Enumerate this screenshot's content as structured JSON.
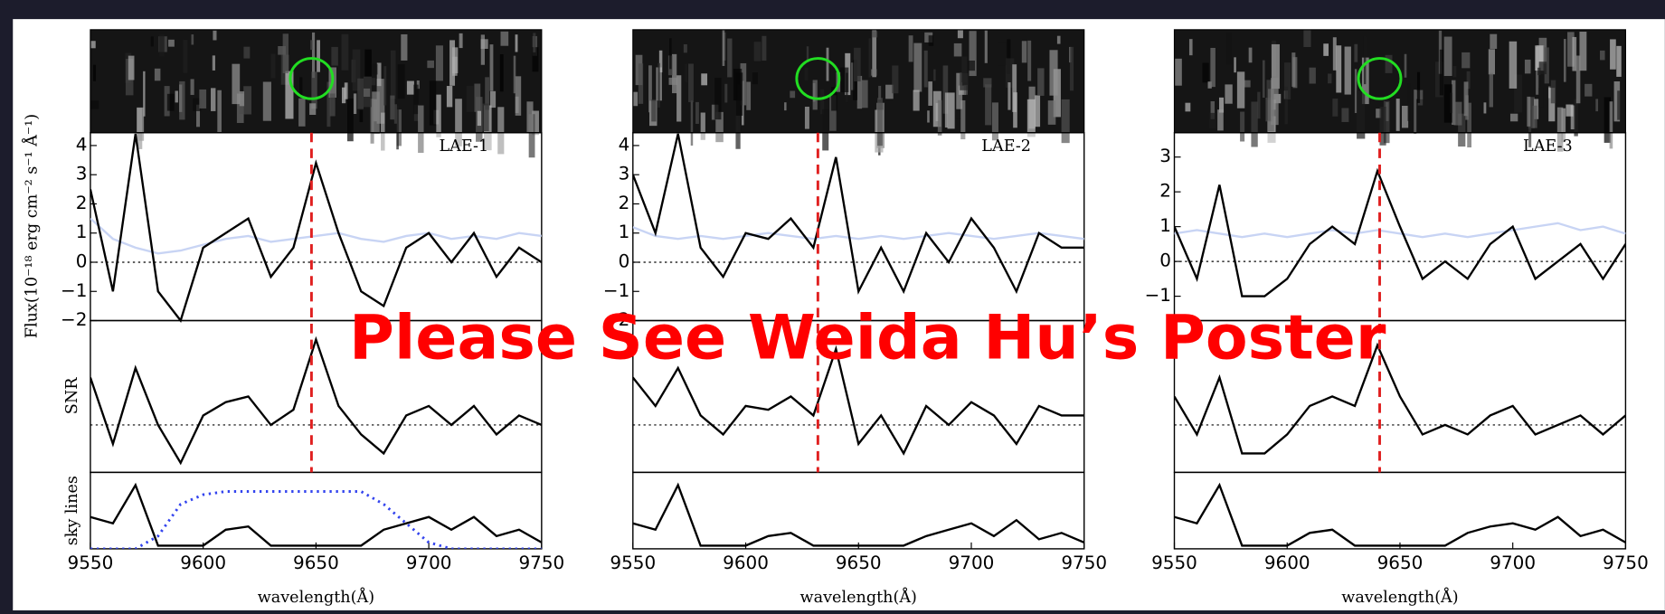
{
  "slide": {
    "overlay_text": "Please See Weida Hu’s Poster",
    "y_label": "Flux(10⁻¹⁸ erg cm⁻² s⁻¹ Å⁻¹)",
    "snr_label": "SNR",
    "sky_label": "sky lines"
  },
  "chart_data": [
    {
      "type": "line",
      "title": "LAE-1",
      "x_label": "wavelength(Å)",
      "line_wavelength": 9648,
      "x": [
        9550,
        9560,
        9570,
        9580,
        9590,
        9600,
        9610,
        9620,
        9630,
        9640,
        9650,
        9660,
        9670,
        9680,
        9690,
        9700,
        9710,
        9720,
        9730,
        9740,
        9750
      ],
      "xlim": [
        9550,
        9750
      ],
      "xticks": [
        9550,
        9600,
        9650,
        9700,
        9750
      ],
      "ylim": [
        -2,
        4.44
      ],
      "yticks": [
        {
          "value": -2,
          "label": "−2"
        },
        {
          "value": -1,
          "label": "−1"
        },
        0,
        1,
        2,
        3,
        4
      ],
      "flux": {
        "color": "#000000",
        "values": [
          2.5,
          -1,
          4.4,
          -1,
          -2,
          0.5,
          1,
          1.5,
          -0.5,
          0.5,
          3.4,
          1,
          -1,
          -1.5,
          0.5,
          1,
          0,
          1,
          -0.5,
          0.5,
          0
        ]
      },
      "noise": {
        "color": "#c8d4f4",
        "values": [
          1.5,
          0.8,
          0.5,
          0.3,
          0.4,
          0.6,
          0.8,
          0.9,
          0.7,
          0.8,
          0.9,
          1,
          0.8,
          0.7,
          0.9,
          1,
          0.8,
          0.9,
          0.8,
          1,
          0.9
        ]
      },
      "snr": {
        "ylim": [
          -2.5,
          5.5
        ],
        "values": [
          2.5,
          -1,
          3,
          0,
          -2,
          0.5,
          1.2,
          1.5,
          0,
          0.8,
          4.5,
          1,
          -0.5,
          -1.5,
          0.5,
          1,
          0,
          1,
          -0.5,
          0.5,
          0
        ]
      },
      "sky": {
        "ylim": [
          0,
          1.2
        ],
        "values": [
          0.5,
          0.4,
          1,
          0.05,
          0.05,
          0.05,
          0.3,
          0.35,
          0.05,
          0.05,
          0.05,
          0.05,
          0.05,
          0.3,
          0.4,
          0.5,
          0.3,
          0.5,
          0.2,
          0.3,
          0.1
        ]
      },
      "filter": {
        "color": "#3344ee",
        "values": [
          0,
          0,
          0,
          0.2,
          0.7,
          0.85,
          0.9,
          0.9,
          0.9,
          0.9,
          0.9,
          0.9,
          0.9,
          0.7,
          0.4,
          0.1,
          0,
          0,
          0,
          0,
          0
        ]
      }
    },
    {
      "type": "line",
      "title": "LAE-2",
      "x_label": "wavelength(Å)",
      "line_wavelength": 9632,
      "x": [
        9550,
        9560,
        9570,
        9580,
        9590,
        9600,
        9610,
        9620,
        9630,
        9640,
        9650,
        9660,
        9670,
        9680,
        9690,
        9700,
        9710,
        9720,
        9730,
        9740,
        9750
      ],
      "xlim": [
        9550,
        9750
      ],
      "xticks": [
        9550,
        9600,
        9650,
        9700,
        9750
      ],
      "ylim": [
        -2,
        4.44
      ],
      "yticks": [
        {
          "value": -2,
          "label": "−2"
        },
        {
          "value": -1,
          "label": "−1"
        },
        0,
        1,
        2,
        3,
        4
      ],
      "flux": {
        "color": "#000000",
        "values": [
          3,
          1,
          4.4,
          0.5,
          -0.5,
          1,
          0.8,
          1.5,
          0.5,
          3.6,
          -1,
          0.5,
          -1,
          1,
          0,
          1.5,
          0.5,
          -1,
          1,
          0.5,
          0.5
        ]
      },
      "noise": {
        "color": "#c8d4f4",
        "values": [
          1.2,
          0.9,
          0.8,
          0.9,
          0.8,
          0.9,
          1,
          0.9,
          0.8,
          0.9,
          0.8,
          0.9,
          0.8,
          0.9,
          1,
          0.9,
          0.8,
          0.9,
          1,
          0.9,
          0.8
        ]
      },
      "snr": {
        "ylim": [
          -2.5,
          5.5
        ],
        "values": [
          2.5,
          1,
          3,
          0.5,
          -0.5,
          1,
          0.8,
          1.5,
          0.5,
          4,
          -1,
          0.5,
          -1.5,
          1,
          0,
          1.2,
          0.5,
          -1,
          1,
          0.5,
          0.5
        ]
      },
      "sky": {
        "ylim": [
          0,
          1.2
        ],
        "values": [
          0.4,
          0.3,
          1,
          0.05,
          0.05,
          0.05,
          0.2,
          0.25,
          0.05,
          0.05,
          0.05,
          0.05,
          0.05,
          0.2,
          0.3,
          0.4,
          0.2,
          0.45,
          0.15,
          0.25,
          0.1
        ]
      }
    },
    {
      "type": "line",
      "title": "LAE-3",
      "x_label": "wavelength(Å)",
      "line_wavelength": 9641,
      "x": [
        9550,
        9560,
        9570,
        9580,
        9590,
        9600,
        9610,
        9620,
        9630,
        9640,
        9650,
        9660,
        9670,
        9680,
        9690,
        9700,
        9710,
        9720,
        9730,
        9740,
        9750
      ],
      "xlim": [
        9550,
        9750
      ],
      "xticks": [
        9550,
        9600,
        9650,
        9700,
        9750
      ],
      "ylim": [
        -1.7,
        3.7
      ],
      "yticks": [
        {
          "value": -1,
          "label": "−1"
        },
        0,
        1,
        2,
        3
      ],
      "flux": {
        "color": "#000000",
        "values": [
          1,
          -0.5,
          2.2,
          -1,
          -1,
          -0.5,
          0.5,
          1,
          0.5,
          2.6,
          1,
          -0.5,
          0,
          -0.5,
          0.5,
          1,
          -0.5,
          0,
          0.5,
          -0.5,
          0.5
        ]
      },
      "noise": {
        "color": "#c8d4f4",
        "values": [
          0.8,
          0.9,
          0.8,
          0.7,
          0.8,
          0.7,
          0.8,
          0.9,
          0.8,
          0.9,
          0.8,
          0.7,
          0.8,
          0.7,
          0.8,
          0.9,
          1,
          1.1,
          0.9,
          1,
          0.8
        ]
      },
      "snr": {
        "ylim": [
          -2.5,
          5.5
        ],
        "values": [
          1.5,
          -0.5,
          2.5,
          -1.5,
          -1.5,
          -0.5,
          1,
          1.5,
          1,
          4.2,
          1.5,
          -0.5,
          0,
          -0.5,
          0.5,
          1,
          -0.5,
          0,
          0.5,
          -0.5,
          0.5
        ]
      },
      "sky": {
        "ylim": [
          0,
          1.2
        ],
        "values": [
          0.5,
          0.4,
          1,
          0.05,
          0.05,
          0.05,
          0.25,
          0.3,
          0.05,
          0.05,
          0.05,
          0.05,
          0.05,
          0.25,
          0.35,
          0.4,
          0.3,
          0.5,
          0.2,
          0.3,
          0.1
        ]
      }
    }
  ]
}
